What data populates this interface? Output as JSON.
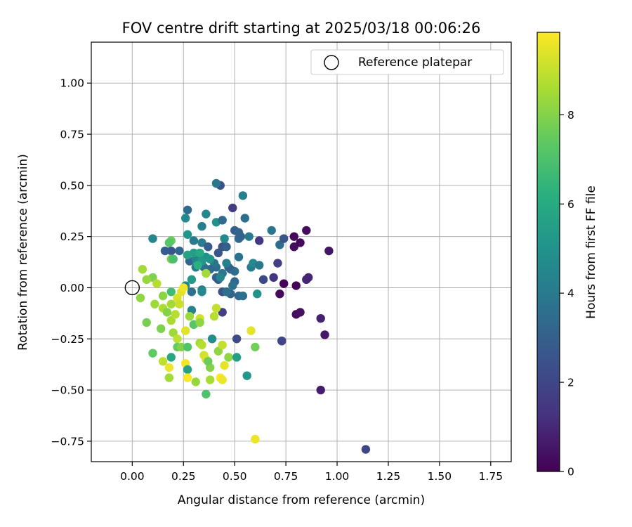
{
  "chart_data": {
    "type": "scatter",
    "title": "FOV centre drift starting at 2025/03/18 00:06:26",
    "xlabel": "Angular distance from reference (arcmin)",
    "ylabel": "Rotation from reference (arcmin)",
    "xlim": [
      -0.2,
      1.85
    ],
    "ylim": [
      -0.85,
      1.2
    ],
    "xticks": [
      0.0,
      0.25,
      0.5,
      0.75,
      1.0,
      1.25,
      1.5,
      1.75
    ],
    "xtick_labels": [
      "0.00",
      "0.25",
      "0.50",
      "0.75",
      "1.00",
      "1.25",
      "1.50",
      "1.75"
    ],
    "yticks": [
      -0.75,
      -0.5,
      -0.25,
      0.0,
      0.25,
      0.5,
      0.75,
      1.0
    ],
    "ytick_labels": [
      "−0.75",
      "−0.50",
      "−0.25",
      "0.00",
      "0.25",
      "0.50",
      "0.75",
      "1.00"
    ],
    "grid": true,
    "legend": {
      "placement": "top-right",
      "entries": [
        "Reference platepar"
      ]
    },
    "reference_point": {
      "x": 0.0,
      "y": 0.0,
      "marker": "open-circle"
    },
    "colorbar": {
      "label": "Hours from first FF file",
      "colormap": "viridis",
      "range": [
        0,
        9.85
      ],
      "ticks": [
        0,
        2,
        4,
        6,
        8
      ],
      "tick_labels": [
        "0",
        "2",
        "4",
        "6",
        "8"
      ]
    },
    "series": [
      {
        "marker": "filled-circle",
        "x_unit": "arcmin",
        "y_unit": "arcmin",
        "points": [
          [
            0.72,
            -0.03,
            0.2
          ],
          [
            0.74,
            0.02,
            0.1
          ],
          [
            0.79,
            0.25,
            0.2
          ],
          [
            0.79,
            0.2,
            0.3
          ],
          [
            0.8,
            0.01,
            0.1
          ],
          [
            0.82,
            0.22,
            0.2
          ],
          [
            0.85,
            0.28,
            0.3
          ],
          [
            0.8,
            -0.13,
            0.3
          ],
          [
            0.82,
            -0.12,
            0.4
          ],
          [
            0.85,
            0.04,
            1.0
          ],
          [
            0.86,
            0.05,
            0.9
          ],
          [
            0.92,
            -0.15,
            0.8
          ],
          [
            0.94,
            -0.23,
            0.6
          ],
          [
            0.96,
            0.18,
            0.5
          ],
          [
            0.92,
            -0.5,
            0.7
          ],
          [
            1.14,
            -0.79,
            2.0
          ],
          [
            0.73,
            -0.26,
            1.8
          ],
          [
            0.73,
            -0.26,
            2.0
          ],
          [
            0.69,
            0.05,
            1.3
          ],
          [
            0.71,
            0.12,
            1.7
          ],
          [
            0.62,
            0.23,
            1.5
          ],
          [
            0.49,
            0.39,
            1.6
          ],
          [
            0.44,
            -0.12,
            1.7
          ],
          [
            0.51,
            -0.25,
            2.2
          ],
          [
            0.43,
            0.5,
            2.5
          ],
          [
            0.41,
            0.51,
            3.8
          ],
          [
            0.54,
            0.45,
            4.3
          ],
          [
            0.36,
            0.36,
            4.5
          ],
          [
            0.27,
            0.38,
            3.5
          ],
          [
            0.26,
            0.34,
            4.6
          ],
          [
            0.27,
            0.26,
            5.1
          ],
          [
            0.41,
            0.32,
            5.0
          ],
          [
            0.44,
            0.33,
            3.4
          ],
          [
            0.34,
            0.3,
            4.2
          ],
          [
            0.3,
            0.23,
            4.0
          ],
          [
            0.34,
            0.22,
            4.1
          ],
          [
            0.37,
            0.2,
            2.9
          ],
          [
            0.42,
            0.17,
            2.6
          ],
          [
            0.44,
            0.2,
            2.5
          ],
          [
            0.45,
            0.24,
            4.6
          ],
          [
            0.46,
            0.2,
            3.0
          ],
          [
            0.5,
            0.28,
            2.9
          ],
          [
            0.52,
            0.27,
            3.1
          ],
          [
            0.52,
            0.24,
            3.3
          ],
          [
            0.53,
            0.25,
            3.1
          ],
          [
            0.55,
            0.34,
            3.6
          ],
          [
            0.57,
            0.25,
            4.0
          ],
          [
            0.52,
            0.15,
            3.7
          ],
          [
            0.5,
            0.08,
            3.6
          ],
          [
            0.48,
            0.09,
            3.4
          ],
          [
            0.47,
            0.1,
            3.0
          ],
          [
            0.46,
            0.12,
            4.2
          ],
          [
            0.44,
            0.07,
            3.9
          ],
          [
            0.41,
            0.1,
            3.5
          ],
          [
            0.4,
            0.12,
            3.8
          ],
          [
            0.38,
            0.09,
            3.3
          ],
          [
            0.35,
            0.1,
            3.6
          ],
          [
            0.31,
            0.1,
            4.0
          ],
          [
            0.28,
            0.13,
            3.2
          ],
          [
            0.36,
            0.15,
            4.9
          ],
          [
            0.38,
            0.14,
            5.1
          ],
          [
            0.31,
            0.14,
            4.4
          ],
          [
            0.3,
            0.17,
            5.4
          ],
          [
            0.33,
            0.17,
            6.0
          ],
          [
            0.34,
            0.13,
            5.2
          ],
          [
            0.27,
            0.16,
            5.6
          ],
          [
            0.19,
            0.18,
            2.6
          ],
          [
            0.23,
            0.18,
            3.2
          ],
          [
            0.16,
            0.18,
            2.9
          ],
          [
            0.1,
            0.24,
            4.5
          ],
          [
            0.19,
            0.23,
            7.5
          ],
          [
            0.18,
            0.22,
            7.2
          ],
          [
            0.19,
            0.14,
            7.8
          ],
          [
            0.2,
            0.14,
            6.9
          ],
          [
            0.29,
            0.04,
            5.3
          ],
          [
            0.36,
            0.07,
            8.5
          ],
          [
            0.32,
            0.11,
            6.2
          ],
          [
            0.41,
            0.05,
            3.1
          ],
          [
            0.42,
            0.04,
            2.8
          ],
          [
            0.43,
            0.05,
            4.4
          ],
          [
            0.5,
            0.03,
            3.3
          ],
          [
            0.49,
            0.01,
            3.7
          ],
          [
            0.48,
            -0.03,
            3.1
          ],
          [
            0.44,
            -0.02,
            2.4
          ],
          [
            0.46,
            -0.02,
            3.6
          ],
          [
            0.34,
            -0.01,
            4.1
          ],
          [
            0.34,
            -0.02,
            4.6
          ],
          [
            0.29,
            -0.02,
            3.7
          ],
          [
            0.26,
            0.01,
            4.4
          ],
          [
            0.52,
            -0.04,
            3.3
          ],
          [
            0.54,
            -0.04,
            3.6
          ],
          [
            0.58,
            0.1,
            4.1
          ],
          [
            0.59,
            0.12,
            4.6
          ],
          [
            0.62,
            0.11,
            4.0
          ],
          [
            0.64,
            0.04,
            2.1
          ],
          [
            0.68,
            0.28,
            3.8
          ],
          [
            0.72,
            0.21,
            3.5
          ],
          [
            0.74,
            0.24,
            2.5
          ],
          [
            0.61,
            -0.03,
            5.0
          ],
          [
            0.56,
            -0.43,
            5.2
          ],
          [
            0.05,
            0.09,
            8.5
          ],
          [
            0.04,
            -0.05,
            8.2
          ],
          [
            0.1,
            0.05,
            7.9
          ],
          [
            0.12,
            0.02,
            8.8
          ],
          [
            0.07,
            0.04,
            8.3
          ],
          [
            0.15,
            -0.04,
            8.1
          ],
          [
            0.19,
            -0.02,
            6.8
          ],
          [
            0.11,
            -0.08,
            8.4
          ],
          [
            0.15,
            -0.1,
            8.6
          ],
          [
            0.17,
            -0.12,
            8.0
          ],
          [
            0.19,
            -0.08,
            8.5
          ],
          [
            0.22,
            -0.05,
            9.3
          ],
          [
            0.24,
            -0.02,
            9.4
          ],
          [
            0.25,
            0.0,
            9.6
          ],
          [
            0.19,
            -0.16,
            8.6
          ],
          [
            0.21,
            -0.13,
            8.8
          ],
          [
            0.23,
            -0.08,
            9.1
          ],
          [
            0.29,
            -0.11,
            4.3
          ],
          [
            0.3,
            -0.18,
            7.2
          ],
          [
            0.28,
            -0.14,
            8.4
          ],
          [
            0.33,
            -0.15,
            9.2
          ],
          [
            0.33,
            -0.17,
            8.2
          ],
          [
            0.4,
            -0.14,
            8.8
          ],
          [
            0.41,
            -0.1,
            9.0
          ],
          [
            0.26,
            -0.21,
            9.4
          ],
          [
            0.2,
            -0.22,
            8.4
          ],
          [
            0.22,
            -0.25,
            8.9
          ],
          [
            0.22,
            -0.29,
            7.5
          ],
          [
            0.24,
            -0.29,
            8.0
          ],
          [
            0.27,
            -0.29,
            7.1
          ],
          [
            0.33,
            -0.27,
            8.5
          ],
          [
            0.34,
            -0.28,
            8.8
          ],
          [
            0.42,
            -0.31,
            8.2
          ],
          [
            0.44,
            -0.28,
            9.0
          ],
          [
            0.39,
            -0.25,
            4.8
          ],
          [
            0.58,
            -0.21,
            9.5
          ],
          [
            0.6,
            -0.29,
            7.7
          ],
          [
            0.07,
            -0.17,
            7.8
          ],
          [
            0.1,
            -0.32,
            7.4
          ],
          [
            0.14,
            -0.2,
            7.9
          ],
          [
            0.15,
            -0.36,
            8.9
          ],
          [
            0.18,
            -0.39,
            9.6
          ],
          [
            0.19,
            -0.34,
            5.8
          ],
          [
            0.18,
            -0.44,
            8.5
          ],
          [
            0.26,
            -0.37,
            9.7
          ],
          [
            0.27,
            -0.4,
            5.6
          ],
          [
            0.27,
            -0.44,
            9.8
          ],
          [
            0.31,
            -0.46,
            8.3
          ],
          [
            0.35,
            -0.33,
            9.2
          ],
          [
            0.36,
            -0.35,
            9.3
          ],
          [
            0.38,
            -0.39,
            8.0
          ],
          [
            0.38,
            -0.45,
            8.6
          ],
          [
            0.37,
            -0.36,
            7.6
          ],
          [
            0.36,
            -0.52,
            7.0
          ],
          [
            0.43,
            -0.44,
            9.8
          ],
          [
            0.44,
            -0.45,
            9.6
          ],
          [
            0.45,
            -0.38,
            9.5
          ],
          [
            0.47,
            -0.34,
            8.2
          ],
          [
            0.51,
            -0.34,
            5.5
          ],
          [
            0.6,
            -0.74,
            9.6
          ]
        ]
      }
    ]
  }
}
